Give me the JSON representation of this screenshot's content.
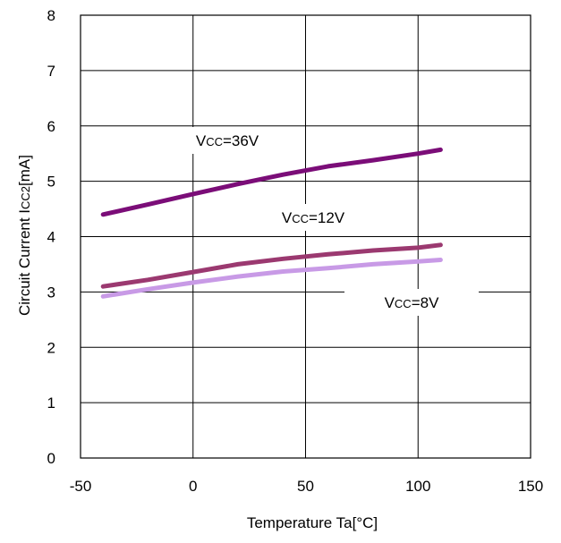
{
  "chart_data": {
    "type": "line",
    "xlabel": "Temperature Ta[°C]",
    "ylabel": "Circuit Current I",
    "ylabel_sub": "CC2",
    "ylabel_unit": "[mA]",
    "xlim": [
      -50,
      150
    ],
    "ylim": [
      0,
      8
    ],
    "xticks": [
      "-50",
      "0",
      "50",
      "100",
      "150"
    ],
    "yticks": [
      "0",
      "1",
      "2",
      "3",
      "4",
      "5",
      "6",
      "7",
      "8"
    ],
    "grid": true,
    "series": [
      {
        "name": "VCC=36V",
        "label_main": "V",
        "label_sub": "CC",
        "label_rest": "=36V",
        "color": "#7b0d78",
        "x": [
          -40,
          -20,
          0,
          20,
          40,
          60,
          80,
          100,
          110
        ],
        "y": [
          4.4,
          4.58,
          4.77,
          4.95,
          5.12,
          5.27,
          5.38,
          5.5,
          5.57
        ]
      },
      {
        "name": "VCC=12V",
        "label_main": "V",
        "label_sub": "CC",
        "label_rest": "=12V",
        "color": "#9b3970",
        "x": [
          -40,
          -20,
          0,
          20,
          40,
          60,
          80,
          100,
          110
        ],
        "y": [
          3.1,
          3.22,
          3.36,
          3.5,
          3.6,
          3.68,
          3.75,
          3.8,
          3.85
        ]
      },
      {
        "name": "VCC=8V",
        "label_main": "V",
        "label_sub": "CC",
        "label_rest": "=8V",
        "color": "#c89ae6",
        "x": [
          -40,
          -20,
          0,
          20,
          40,
          60,
          80,
          100,
          110
        ],
        "y": [
          2.92,
          3.05,
          3.17,
          3.28,
          3.37,
          3.43,
          3.5,
          3.55,
          3.58
        ]
      }
    ]
  }
}
